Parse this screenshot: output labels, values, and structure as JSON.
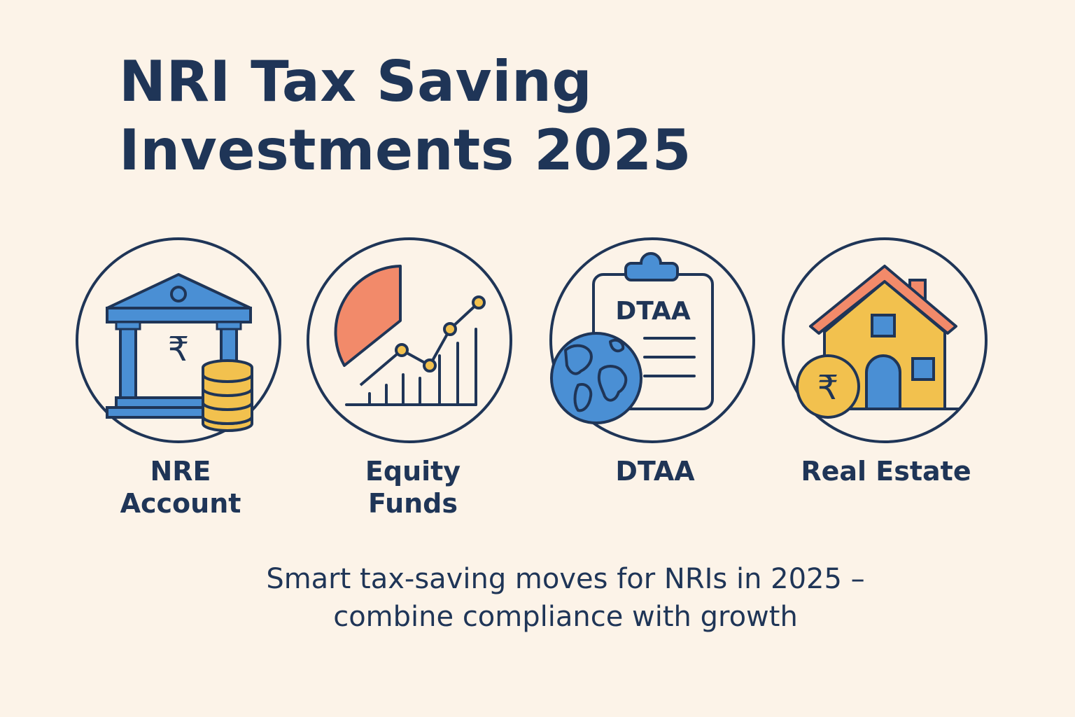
{
  "title": {
    "line1": "NRI Tax Saving",
    "line2": "Investments 2025"
  },
  "items": [
    {
      "label_line1": "NRE",
      "label_line2": "Account",
      "icon": "bank-with-coins-icon"
    },
    {
      "label_line1": "Equity",
      "label_line2": "Funds",
      "icon": "pie-and-growth-chart-icon"
    },
    {
      "label_line1": "DTAA",
      "label_line2": "",
      "icon": "clipboard-globe-icon",
      "icon_text": "DTAA"
    },
    {
      "label_line1": "Real Estate",
      "label_line2": "",
      "icon": "house-with-rupee-coin-icon"
    }
  ],
  "currency_symbol": "₹",
  "subtitle": {
    "line1": "Smart tax-saving moves for NRIs in 2025 –",
    "line2": "combine compliance with growth"
  },
  "colors": {
    "background": "#fcf3e8",
    "navy": "#1f3557",
    "blue": "#4a8fd4",
    "gold": "#f2c14e",
    "coral": "#f28a6a"
  }
}
